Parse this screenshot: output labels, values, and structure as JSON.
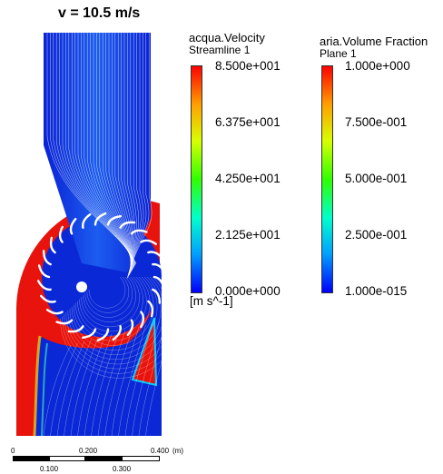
{
  "title": "v = 10.5 m/s",
  "velocity_legend": {
    "title": "acqua.Velocity",
    "subtitle": "Streamline 1",
    "ticks": [
      "8.500e+001",
      "6.375e+001",
      "4.250e+001",
      "2.125e+001",
      "0.000e+000"
    ],
    "unit": "[m s^-1]"
  },
  "fraction_legend": {
    "title": "aria.Volume Fraction",
    "subtitle": "Plane 1",
    "ticks": [
      "1.000e+000",
      "7.500e-001",
      "5.000e-001",
      "2.500e-001",
      "1.000e-015"
    ]
  },
  "scale_bar": {
    "top_labels": [
      "0",
      "0.200",
      "0.400",
      "(m)"
    ],
    "bottom_labels": [
      "0.100",
      "0.300"
    ]
  },
  "colors": {
    "red": "#e8130c",
    "deep_blue": "#0a28d6",
    "mid_blue": "#1c5cf0",
    "colormap": [
      "#0000ff",
      "#00a0ff",
      "#00ffcc",
      "#30ff00",
      "#d8ff00",
      "#ffa000",
      "#ff0000"
    ]
  }
}
